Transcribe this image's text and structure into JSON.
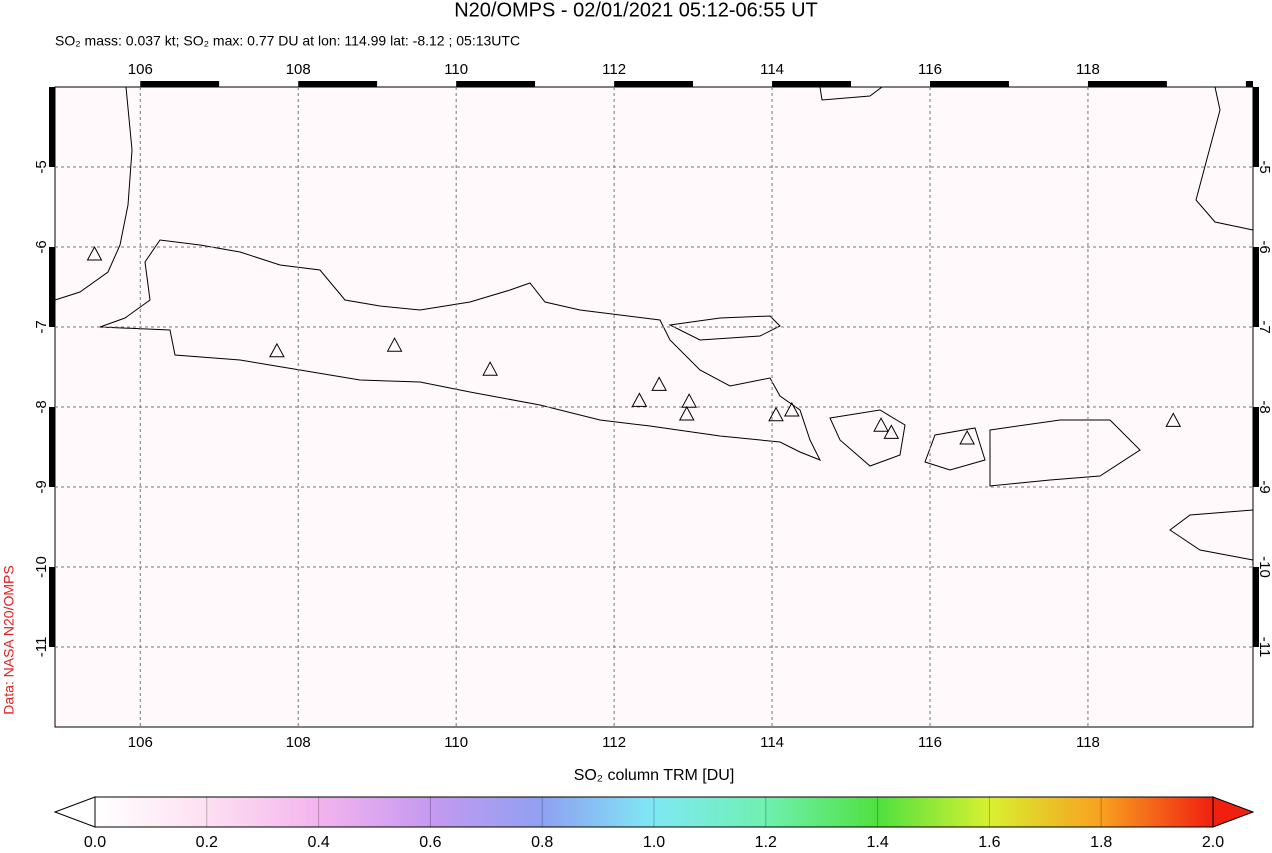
{
  "chart_data": {
    "type": "map",
    "title": "N20/OMPS - 02/01/2021 05:12-06:55 UT",
    "subtitle": "SO₂ mass: 0.037 kt; SO₂ max: 0.77 DU at lon: 114.99 lat: -8.12 ; 05:13UTC",
    "side_label": "Data: NASA N20/OMPS",
    "xlim": [
      104.92,
      120.09
    ],
    "ylim": [
      -4,
      -12
    ],
    "xticks": [
      106,
      108,
      110,
      112,
      114,
      116,
      118
    ],
    "yticks": [
      -5,
      -6,
      -7,
      -8,
      -9,
      -10,
      -11
    ],
    "grid": true,
    "volcanoes": {
      "x": [
        105.42,
        107.73,
        109.22,
        110.43,
        112.32,
        112.57,
        112.95,
        112.92,
        114.05,
        114.25,
        115.38,
        115.51,
        116.47,
        119.08
      ],
      "y": [
        -6.1,
        -7.31,
        -7.24,
        -7.54,
        -7.93,
        -7.73,
        -7.94,
        -8.1,
        -8.11,
        -8.05,
        -8.24,
        -8.33,
        -8.4,
        -8.18
      ]
    },
    "colorbar": {
      "label": "SO₂ column TRM [DU]",
      "lim": [
        0,
        2
      ],
      "ticks": [
        {
          "value": 0,
          "label": "0.0"
        },
        0.2,
        0.4,
        0.6,
        0.8,
        {
          "value": 1,
          "label": "1.0"
        },
        1.2,
        1.4,
        1.6,
        1.8,
        {
          "value": 2,
          "label": "2.0"
        }
      ]
    }
  }
}
